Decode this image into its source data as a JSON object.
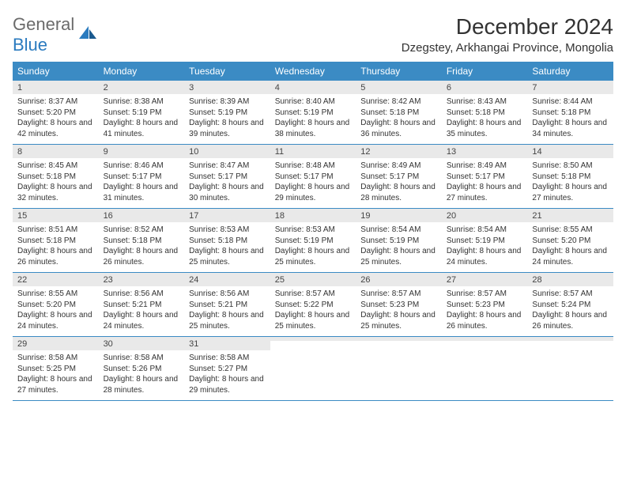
{
  "logo": {
    "textGray": "General",
    "textBlue": "Blue"
  },
  "title": "December 2024",
  "location": "Dzegstey, Arkhangai Province, Mongolia",
  "colors": {
    "headerBg": "#3b8bc4",
    "headerText": "#ffffff",
    "dateRowBg": "#e9e9e9",
    "borderColor": "#3b8bc4",
    "logoBlue": "#2b7bbf",
    "logoGray": "#6b6b6b"
  },
  "dayNames": [
    "Sunday",
    "Monday",
    "Tuesday",
    "Wednesday",
    "Thursday",
    "Friday",
    "Saturday"
  ],
  "weeks": [
    [
      {
        "date": "1",
        "sunrise": "Sunrise: 8:37 AM",
        "sunset": "Sunset: 5:20 PM",
        "daylight": "Daylight: 8 hours and 42 minutes."
      },
      {
        "date": "2",
        "sunrise": "Sunrise: 8:38 AM",
        "sunset": "Sunset: 5:19 PM",
        "daylight": "Daylight: 8 hours and 41 minutes."
      },
      {
        "date": "3",
        "sunrise": "Sunrise: 8:39 AM",
        "sunset": "Sunset: 5:19 PM",
        "daylight": "Daylight: 8 hours and 39 minutes."
      },
      {
        "date": "4",
        "sunrise": "Sunrise: 8:40 AM",
        "sunset": "Sunset: 5:19 PM",
        "daylight": "Daylight: 8 hours and 38 minutes."
      },
      {
        "date": "5",
        "sunrise": "Sunrise: 8:42 AM",
        "sunset": "Sunset: 5:18 PM",
        "daylight": "Daylight: 8 hours and 36 minutes."
      },
      {
        "date": "6",
        "sunrise": "Sunrise: 8:43 AM",
        "sunset": "Sunset: 5:18 PM",
        "daylight": "Daylight: 8 hours and 35 minutes."
      },
      {
        "date": "7",
        "sunrise": "Sunrise: 8:44 AM",
        "sunset": "Sunset: 5:18 PM",
        "daylight": "Daylight: 8 hours and 34 minutes."
      }
    ],
    [
      {
        "date": "8",
        "sunrise": "Sunrise: 8:45 AM",
        "sunset": "Sunset: 5:18 PM",
        "daylight": "Daylight: 8 hours and 32 minutes."
      },
      {
        "date": "9",
        "sunrise": "Sunrise: 8:46 AM",
        "sunset": "Sunset: 5:17 PM",
        "daylight": "Daylight: 8 hours and 31 minutes."
      },
      {
        "date": "10",
        "sunrise": "Sunrise: 8:47 AM",
        "sunset": "Sunset: 5:17 PM",
        "daylight": "Daylight: 8 hours and 30 minutes."
      },
      {
        "date": "11",
        "sunrise": "Sunrise: 8:48 AM",
        "sunset": "Sunset: 5:17 PM",
        "daylight": "Daylight: 8 hours and 29 minutes."
      },
      {
        "date": "12",
        "sunrise": "Sunrise: 8:49 AM",
        "sunset": "Sunset: 5:17 PM",
        "daylight": "Daylight: 8 hours and 28 minutes."
      },
      {
        "date": "13",
        "sunrise": "Sunrise: 8:49 AM",
        "sunset": "Sunset: 5:17 PM",
        "daylight": "Daylight: 8 hours and 27 minutes."
      },
      {
        "date": "14",
        "sunrise": "Sunrise: 8:50 AM",
        "sunset": "Sunset: 5:18 PM",
        "daylight": "Daylight: 8 hours and 27 minutes."
      }
    ],
    [
      {
        "date": "15",
        "sunrise": "Sunrise: 8:51 AM",
        "sunset": "Sunset: 5:18 PM",
        "daylight": "Daylight: 8 hours and 26 minutes."
      },
      {
        "date": "16",
        "sunrise": "Sunrise: 8:52 AM",
        "sunset": "Sunset: 5:18 PM",
        "daylight": "Daylight: 8 hours and 26 minutes."
      },
      {
        "date": "17",
        "sunrise": "Sunrise: 8:53 AM",
        "sunset": "Sunset: 5:18 PM",
        "daylight": "Daylight: 8 hours and 25 minutes."
      },
      {
        "date": "18",
        "sunrise": "Sunrise: 8:53 AM",
        "sunset": "Sunset: 5:19 PM",
        "daylight": "Daylight: 8 hours and 25 minutes."
      },
      {
        "date": "19",
        "sunrise": "Sunrise: 8:54 AM",
        "sunset": "Sunset: 5:19 PM",
        "daylight": "Daylight: 8 hours and 25 minutes."
      },
      {
        "date": "20",
        "sunrise": "Sunrise: 8:54 AM",
        "sunset": "Sunset: 5:19 PM",
        "daylight": "Daylight: 8 hours and 24 minutes."
      },
      {
        "date": "21",
        "sunrise": "Sunrise: 8:55 AM",
        "sunset": "Sunset: 5:20 PM",
        "daylight": "Daylight: 8 hours and 24 minutes."
      }
    ],
    [
      {
        "date": "22",
        "sunrise": "Sunrise: 8:55 AM",
        "sunset": "Sunset: 5:20 PM",
        "daylight": "Daylight: 8 hours and 24 minutes."
      },
      {
        "date": "23",
        "sunrise": "Sunrise: 8:56 AM",
        "sunset": "Sunset: 5:21 PM",
        "daylight": "Daylight: 8 hours and 24 minutes."
      },
      {
        "date": "24",
        "sunrise": "Sunrise: 8:56 AM",
        "sunset": "Sunset: 5:21 PM",
        "daylight": "Daylight: 8 hours and 25 minutes."
      },
      {
        "date": "25",
        "sunrise": "Sunrise: 8:57 AM",
        "sunset": "Sunset: 5:22 PM",
        "daylight": "Daylight: 8 hours and 25 minutes."
      },
      {
        "date": "26",
        "sunrise": "Sunrise: 8:57 AM",
        "sunset": "Sunset: 5:23 PM",
        "daylight": "Daylight: 8 hours and 25 minutes."
      },
      {
        "date": "27",
        "sunrise": "Sunrise: 8:57 AM",
        "sunset": "Sunset: 5:23 PM",
        "daylight": "Daylight: 8 hours and 26 minutes."
      },
      {
        "date": "28",
        "sunrise": "Sunrise: 8:57 AM",
        "sunset": "Sunset: 5:24 PM",
        "daylight": "Daylight: 8 hours and 26 minutes."
      }
    ],
    [
      {
        "date": "29",
        "sunrise": "Sunrise: 8:58 AM",
        "sunset": "Sunset: 5:25 PM",
        "daylight": "Daylight: 8 hours and 27 minutes."
      },
      {
        "date": "30",
        "sunrise": "Sunrise: 8:58 AM",
        "sunset": "Sunset: 5:26 PM",
        "daylight": "Daylight: 8 hours and 28 minutes."
      },
      {
        "date": "31",
        "sunrise": "Sunrise: 8:58 AM",
        "sunset": "Sunset: 5:27 PM",
        "daylight": "Daylight: 8 hours and 29 minutes."
      },
      {
        "empty": true
      },
      {
        "empty": true
      },
      {
        "empty": true
      },
      {
        "empty": true
      }
    ]
  ]
}
